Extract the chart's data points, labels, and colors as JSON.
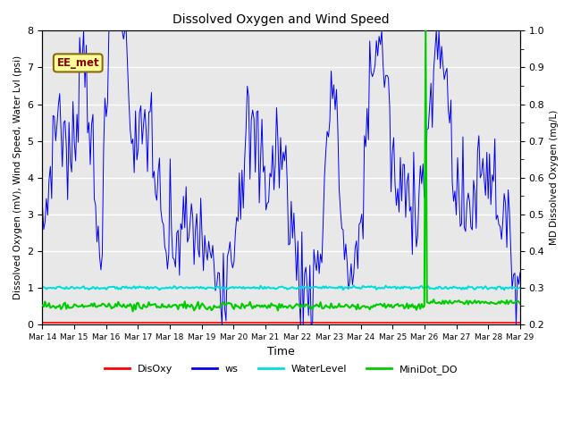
{
  "title": "Dissolved Oxygen and Wind Speed",
  "ylabel_left": "Dissolved Oxygen (mV), Wind Speed, Water Lvl (psi)",
  "ylabel_right": "MD Dissolved Oxygen (mg/L)",
  "xlabel": "Time",
  "ylim_left": [
    0.0,
    8.0
  ],
  "ylim_right": [
    0.2,
    1.0
  ],
  "x_tick_labels": [
    "Mar 14",
    "Mar 15",
    "Mar 16",
    "Mar 17",
    "Mar 18",
    "Mar 19",
    "Mar 20",
    "Mar 21",
    "Mar 22",
    "Mar 23",
    "Mar 24",
    "Mar 25",
    "Mar 26",
    "Mar 27",
    "Mar 28",
    "Mar 29"
  ],
  "annotation_text": "EE_met",
  "background_color": "#e8e8e8",
  "colors": {
    "DisOxy": "#ff0000",
    "ws": "#0000ee",
    "WaterLevel": "#00dddd",
    "MiniDot_DO": "#00cc00"
  },
  "yticks_left": [
    0.0,
    1.0,
    2.0,
    3.0,
    4.0,
    5.0,
    6.0,
    7.0,
    8.0
  ],
  "yticks_right": [
    0.2,
    0.3,
    0.4,
    0.5,
    0.6,
    0.7,
    0.8,
    0.9,
    1.0
  ]
}
